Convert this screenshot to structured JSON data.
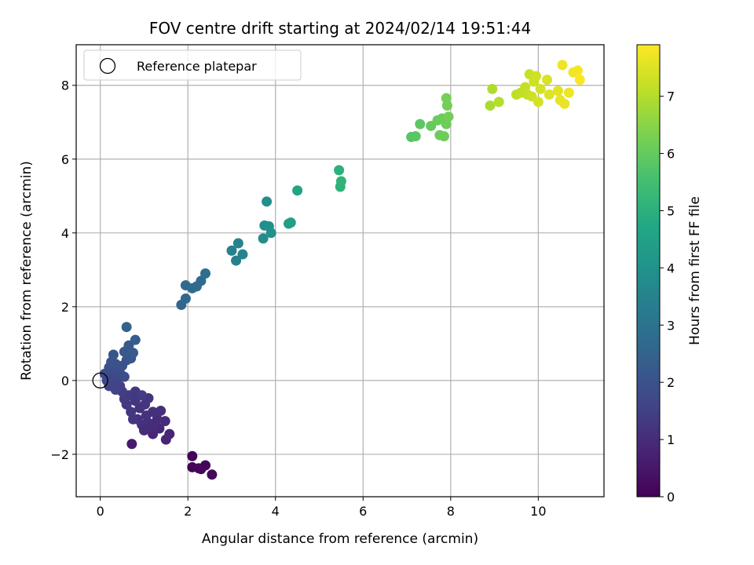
{
  "chart_data": {
    "type": "scatter",
    "title": "FOV centre drift starting at 2024/02/14 19:51:44",
    "xlabel": "Angular distance from reference (arcmin)",
    "ylabel": "Rotation from reference (arcmin)",
    "xlim": [
      -0.55,
      11.5
    ],
    "ylim": [
      -3.15,
      9.1
    ],
    "xticks": [
      0,
      2,
      4,
      6,
      8,
      10
    ],
    "yticks": [
      -2,
      0,
      2,
      4,
      6,
      8
    ],
    "xtick_labels": [
      "0",
      "2",
      "4",
      "6",
      "8",
      "10"
    ],
    "ytick_labels": [
      "−2",
      "0",
      "2",
      "4",
      "6",
      "8"
    ],
    "grid": true,
    "colormap": "viridis",
    "colorbar": {
      "label": "Hours from first FF file",
      "range": [
        0,
        7.9
      ],
      "ticks": [
        0,
        1,
        2,
        3,
        4,
        5,
        6,
        7
      ],
      "tick_labels": [
        "0",
        "1",
        "2",
        "3",
        "4",
        "5",
        "6",
        "7"
      ]
    },
    "reference": {
      "name": "Reference platepar",
      "x": 0,
      "y": 0
    },
    "legend": {
      "placement": "top-left",
      "entries": [
        "Reference platepar"
      ]
    },
    "series": [
      {
        "points": [
          {
            "x": 2.1,
            "y": -2.05,
            "c": 0.05
          },
          {
            "x": 2.1,
            "y": -2.35,
            "c": 0.08
          },
          {
            "x": 2.25,
            "y": -2.38,
            "c": 0.1
          },
          {
            "x": 2.4,
            "y": -2.3,
            "c": 0.12
          },
          {
            "x": 2.55,
            "y": -2.55,
            "c": 0.15
          },
          {
            "x": 2.3,
            "y": -2.4,
            "c": 0.1
          },
          {
            "x": 0.72,
            "y": -1.72,
            "c": 0.6
          },
          {
            "x": 1.5,
            "y": -1.6,
            "c": 0.8
          },
          {
            "x": 1.58,
            "y": -1.45,
            "c": 0.85
          },
          {
            "x": 1.2,
            "y": -1.45,
            "c": 0.9
          },
          {
            "x": 1.35,
            "y": -1.3,
            "c": 0.9
          },
          {
            "x": 1.48,
            "y": -1.1,
            "c": 0.95
          },
          {
            "x": 1.3,
            "y": -1.05,
            "c": 1.0
          },
          {
            "x": 1.38,
            "y": -0.82,
            "c": 1.05
          },
          {
            "x": 1.2,
            "y": -0.85,
            "c": 1.05
          },
          {
            "x": 1.1,
            "y": -1.15,
            "c": 1.05
          },
          {
            "x": 0.95,
            "y": -1.2,
            "c": 1.1
          },
          {
            "x": 1.05,
            "y": -0.95,
            "c": 1.1
          },
          {
            "x": 0.85,
            "y": -1.05,
            "c": 1.15
          },
          {
            "x": 0.9,
            "y": -0.75,
            "c": 1.15
          },
          {
            "x": 1.1,
            "y": -0.48,
            "c": 1.2
          },
          {
            "x": 1.02,
            "y": -0.65,
            "c": 1.2
          },
          {
            "x": 0.8,
            "y": -0.55,
            "c": 1.25
          },
          {
            "x": 0.7,
            "y": -0.85,
            "c": 1.25
          },
          {
            "x": 0.75,
            "y": -1.05,
            "c": 1.25
          },
          {
            "x": 0.6,
            "y": -0.65,
            "c": 1.3
          },
          {
            "x": 0.8,
            "y": -0.3,
            "c": 1.3
          },
          {
            "x": 0.65,
            "y": -0.4,
            "c": 1.35
          },
          {
            "x": 0.55,
            "y": -0.5,
            "c": 1.35
          },
          {
            "x": 0.5,
            "y": -0.3,
            "c": 1.4
          },
          {
            "x": 0.95,
            "y": -0.4,
            "c": 1.4
          },
          {
            "x": 1.2,
            "y": -1.25,
            "c": 1.0
          },
          {
            "x": 1.0,
            "y": -1.35,
            "c": 1.0
          },
          {
            "x": 0.45,
            "y": -0.15,
            "c": 1.5
          },
          {
            "x": 0.3,
            "y": -0.05,
            "c": 1.55
          },
          {
            "x": 0.2,
            "y": -0.15,
            "c": 1.6
          },
          {
            "x": 0.35,
            "y": -0.25,
            "c": 1.6
          },
          {
            "x": 0.4,
            "y": 0.05,
            "c": 1.65
          },
          {
            "x": 0.25,
            "y": 0.15,
            "c": 1.7
          },
          {
            "x": 0.15,
            "y": 0.12,
            "c": 1.75
          },
          {
            "x": 0.3,
            "y": 0.3,
            "c": 1.8
          },
          {
            "x": 0.45,
            "y": 0.2,
            "c": 1.8
          },
          {
            "x": 0.55,
            "y": 0.1,
            "c": 1.85
          },
          {
            "x": 0.2,
            "y": 0.35,
            "c": 1.9
          },
          {
            "x": 0.35,
            "y": 0.45,
            "c": 1.95
          },
          {
            "x": 0.5,
            "y": 0.4,
            "c": 2.0
          },
          {
            "x": 0.25,
            "y": 0.5,
            "c": 2.0
          },
          {
            "x": 0.6,
            "y": 0.55,
            "c": 2.05
          },
          {
            "x": 0.3,
            "y": 0.7,
            "c": 2.1
          },
          {
            "x": 0.7,
            "y": 0.6,
            "c": 2.15
          },
          {
            "x": 0.65,
            "y": 0.95,
            "c": 2.2
          },
          {
            "x": 0.55,
            "y": 0.78,
            "c": 2.2
          },
          {
            "x": 0.75,
            "y": 0.75,
            "c": 2.25
          },
          {
            "x": 0.8,
            "y": 1.1,
            "c": 2.3
          },
          {
            "x": 0.6,
            "y": 1.45,
            "c": 2.45
          },
          {
            "x": 0.1,
            "y": 0.18,
            "c": 1.8
          },
          {
            "x": 0.15,
            "y": 0.0,
            "c": 1.7
          },
          {
            "x": 1.85,
            "y": 2.05,
            "c": 2.6
          },
          {
            "x": 1.95,
            "y": 2.22,
            "c": 2.65
          },
          {
            "x": 1.95,
            "y": 2.58,
            "c": 2.7
          },
          {
            "x": 2.1,
            "y": 2.5,
            "c": 2.72
          },
          {
            "x": 2.2,
            "y": 2.55,
            "c": 2.75
          },
          {
            "x": 2.3,
            "y": 2.7,
            "c": 2.78
          },
          {
            "x": 2.4,
            "y": 2.9,
            "c": 2.85
          },
          {
            "x": 3.0,
            "y": 3.52,
            "c": 3.4
          },
          {
            "x": 3.1,
            "y": 3.25,
            "c": 3.45
          },
          {
            "x": 3.15,
            "y": 3.72,
            "c": 3.5
          },
          {
            "x": 3.25,
            "y": 3.42,
            "c": 3.5
          },
          {
            "x": 3.72,
            "y": 3.85,
            "c": 3.8
          },
          {
            "x": 3.75,
            "y": 4.2,
            "c": 3.85
          },
          {
            "x": 3.8,
            "y": 4.85,
            "c": 3.9
          },
          {
            "x": 3.85,
            "y": 4.18,
            "c": 3.9
          },
          {
            "x": 3.9,
            "y": 4.0,
            "c": 3.95
          },
          {
            "x": 4.3,
            "y": 4.25,
            "c": 4.4
          },
          {
            "x": 4.35,
            "y": 4.28,
            "c": 4.45
          },
          {
            "x": 4.5,
            "y": 5.15,
            "c": 4.6
          },
          {
            "x": 5.45,
            "y": 5.7,
            "c": 5.0
          },
          {
            "x": 5.48,
            "y": 5.25,
            "c": 5.05
          },
          {
            "x": 5.5,
            "y": 5.4,
            "c": 5.1
          },
          {
            "x": 7.1,
            "y": 6.6,
            "c": 5.8
          },
          {
            "x": 7.2,
            "y": 6.62,
            "c": 5.85
          },
          {
            "x": 7.3,
            "y": 6.95,
            "c": 5.9
          },
          {
            "x": 7.55,
            "y": 6.9,
            "c": 6.0
          },
          {
            "x": 7.7,
            "y": 7.05,
            "c": 6.05
          },
          {
            "x": 7.75,
            "y": 6.65,
            "c": 6.1
          },
          {
            "x": 7.8,
            "y": 7.1,
            "c": 6.1
          },
          {
            "x": 7.85,
            "y": 6.62,
            "c": 6.15
          },
          {
            "x": 7.9,
            "y": 6.95,
            "c": 6.15
          },
          {
            "x": 7.95,
            "y": 7.15,
            "c": 6.2
          },
          {
            "x": 7.92,
            "y": 7.45,
            "c": 6.2
          },
          {
            "x": 7.9,
            "y": 7.65,
            "c": 6.25
          },
          {
            "x": 8.9,
            "y": 7.45,
            "c": 6.9
          },
          {
            "x": 8.95,
            "y": 7.9,
            "c": 6.95
          },
          {
            "x": 9.1,
            "y": 7.55,
            "c": 7.0
          },
          {
            "x": 9.5,
            "y": 7.75,
            "c": 7.1
          },
          {
            "x": 9.6,
            "y": 7.8,
            "c": 7.15
          },
          {
            "x": 9.7,
            "y": 7.95,
            "c": 7.2
          },
          {
            "x": 9.75,
            "y": 7.75,
            "c": 7.2
          },
          {
            "x": 9.8,
            "y": 8.3,
            "c": 7.25
          },
          {
            "x": 9.85,
            "y": 7.7,
            "c": 7.3
          },
          {
            "x": 9.9,
            "y": 8.1,
            "c": 7.3
          },
          {
            "x": 9.95,
            "y": 8.25,
            "c": 7.35
          },
          {
            "x": 10.0,
            "y": 7.55,
            "c": 7.4
          },
          {
            "x": 10.05,
            "y": 7.9,
            "c": 7.4
          },
          {
            "x": 10.2,
            "y": 8.15,
            "c": 7.45
          },
          {
            "x": 10.25,
            "y": 7.75,
            "c": 7.5
          },
          {
            "x": 10.45,
            "y": 7.85,
            "c": 7.55
          },
          {
            "x": 10.5,
            "y": 7.6,
            "c": 7.6
          },
          {
            "x": 10.55,
            "y": 8.55,
            "c": 7.7
          },
          {
            "x": 10.6,
            "y": 7.5,
            "c": 7.65
          },
          {
            "x": 10.7,
            "y": 7.8,
            "c": 7.7
          },
          {
            "x": 10.8,
            "y": 8.35,
            "c": 7.75
          },
          {
            "x": 10.9,
            "y": 8.4,
            "c": 7.8
          },
          {
            "x": 10.95,
            "y": 8.15,
            "c": 7.85
          }
        ]
      }
    ]
  }
}
